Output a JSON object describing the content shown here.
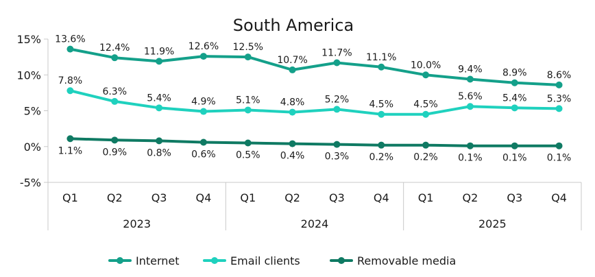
{
  "chart_data": {
    "type": "line",
    "title": "South America",
    "xlabel": "",
    "ylabel": "",
    "ylim": [
      -5,
      15
    ],
    "yticks": [
      "-5%",
      "0%",
      "5%",
      "10%",
      "15%"
    ],
    "ytick_values": [
      -5,
      0,
      5,
      10,
      15
    ],
    "grid": false,
    "legend_position": "bottom",
    "categories": [
      "Q1",
      "Q2",
      "Q3",
      "Q4",
      "Q1",
      "Q2",
      "Q3",
      "Q4",
      "Q1",
      "Q2",
      "Q3",
      "Q4"
    ],
    "groups": [
      {
        "label": "2023",
        "count": 4
      },
      {
        "label": "2024",
        "count": 4
      },
      {
        "label": "2025",
        "count": 4
      }
    ],
    "series": [
      {
        "name": "Internet",
        "color": "#14a08a",
        "values": [
          13.6,
          12.4,
          11.9,
          12.6,
          12.5,
          10.7,
          11.7,
          11.1,
          10.0,
          9.4,
          8.9,
          8.6
        ],
        "labels": [
          "13.6%",
          "12.4%",
          "11.9%",
          "12.6%",
          "12.5%",
          "10.7%",
          "11.7%",
          "11.1%",
          "10.0%",
          "9.4%",
          "8.9%",
          "8.6%"
        ],
        "label_position": "above"
      },
      {
        "name": "Email clients",
        "color": "#1fd1be",
        "values": [
          7.8,
          6.3,
          5.4,
          4.9,
          5.1,
          4.8,
          5.2,
          4.5,
          4.5,
          5.6,
          5.4,
          5.3
        ],
        "labels": [
          "7.8%",
          "6.3%",
          "5.4%",
          "4.9%",
          "5.1%",
          "4.8%",
          "5.2%",
          "4.5%",
          "4.5%",
          "5.6%",
          "5.4%",
          "5.3%"
        ],
        "label_position": "above"
      },
      {
        "name": "Removable media",
        "color": "#0f7a63",
        "values": [
          1.1,
          0.9,
          0.8,
          0.6,
          0.5,
          0.4,
          0.3,
          0.2,
          0.2,
          0.1,
          0.1,
          0.1
        ],
        "labels": [
          "1.1%",
          "0.9%",
          "0.8%",
          "0.6%",
          "0.5%",
          "0.4%",
          "0.3%",
          "0.2%",
          "0.2%",
          "0.1%",
          "0.1%",
          "0.1%"
        ],
        "label_position": "below"
      }
    ]
  }
}
